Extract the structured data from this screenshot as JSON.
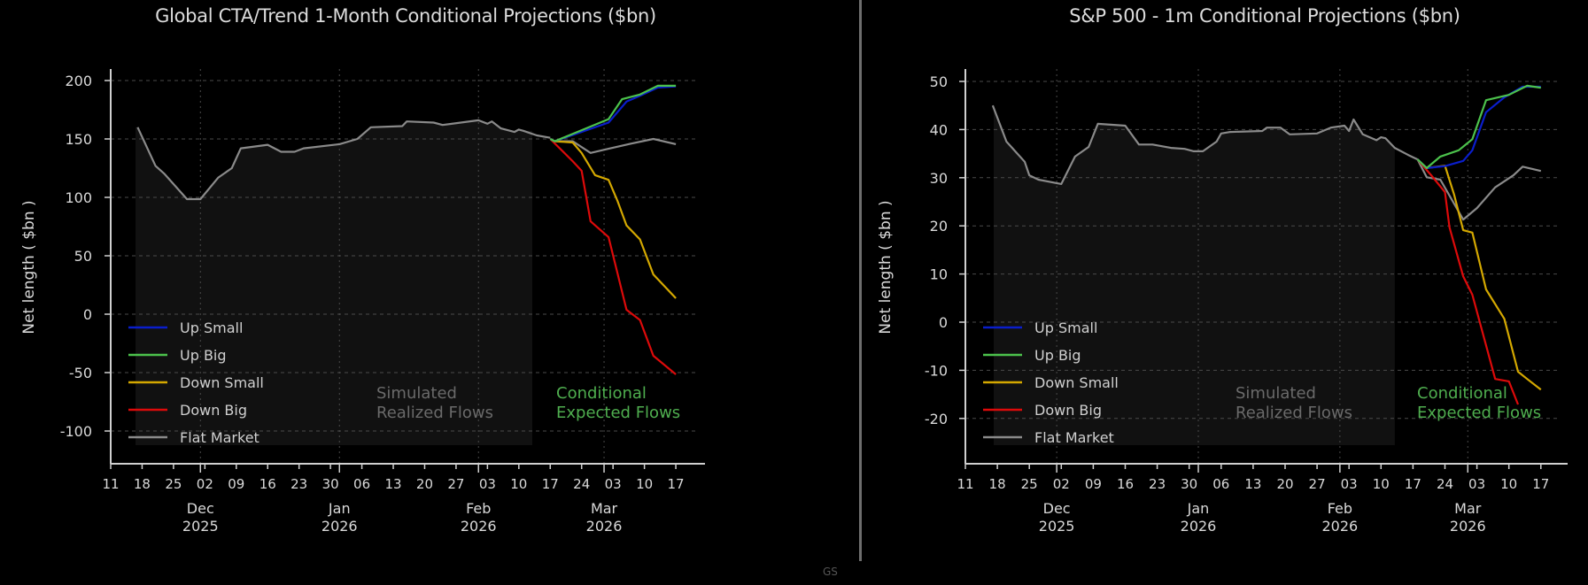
{
  "footer": "GS",
  "colors": {
    "up_small": "#0a1ecc",
    "up_big": "#4cc24c",
    "down_small": "#d4a800",
    "down_big": "#dd0a0a",
    "flat_market": "#8a8a8a",
    "realized": "#8a8a8a",
    "annotation_realized": "#6a6a6a",
    "annotation_conditional": "#4fae4f",
    "shade": "#111111",
    "axis": "#d0d0d0",
    "grid": "#4a4a4a"
  },
  "legend": [
    "Up Small",
    "Up Big",
    "Down Small",
    "Down Big",
    "Flat Market"
  ],
  "chart_data": [
    {
      "type": "line",
      "title": "Global CTA/Trend 1-Month Conditional Projections ($bn)",
      "ylabel": "Net length ( $bn )",
      "xlabel": "",
      "ylim": [
        -125,
        210
      ],
      "yticks": [
        200,
        150,
        100,
        50,
        0,
        -50,
        -100
      ],
      "xlim": [
        "2025-11-11",
        "2026-03-23"
      ],
      "xtick_labels": [
        "11",
        "18",
        "25",
        "02",
        "09",
        "16",
        "23",
        "30",
        "06",
        "13",
        "20",
        "27",
        "03",
        "10",
        "17",
        "24",
        "03",
        "10",
        "17"
      ],
      "xtick_dates": [
        "2025-11-11",
        "2025-11-18",
        "2025-11-25",
        "2025-12-02",
        "2025-12-09",
        "2025-12-16",
        "2025-12-23",
        "2025-12-30",
        "2026-01-06",
        "2026-01-13",
        "2026-01-20",
        "2026-01-27",
        "2026-02-03",
        "2026-02-10",
        "2026-02-17",
        "2026-02-24",
        "2026-03-03",
        "2026-03-10",
        "2026-03-17"
      ],
      "month_labels": [
        {
          "month": "Dec",
          "year": "2025",
          "date": "2025-12-01"
        },
        {
          "month": "Jan",
          "year": "2026",
          "date": "2026-01-01"
        },
        {
          "month": "Feb",
          "year": "2026",
          "date": "2026-02-01"
        },
        {
          "month": "Mar",
          "year": "2026",
          "date": "2026-03-01"
        }
      ],
      "grid": true,
      "legend_position": "lower-left",
      "annotations": {
        "realized": [
          "Simulated",
          "Realized Flows"
        ],
        "conditional": [
          "Conditional",
          "Expected Flows"
        ]
      },
      "shaded_until": "2026-02-13",
      "realized": {
        "x": [
          "2025-11-17",
          "2025-11-21",
          "2025-11-23",
          "2025-11-28",
          "2025-12-01",
          "2025-12-05",
          "2025-12-08",
          "2025-12-10",
          "2025-12-16",
          "2025-12-19",
          "2025-12-22",
          "2025-12-24",
          "2026-01-01",
          "2026-01-05",
          "2026-01-08",
          "2026-01-15",
          "2026-01-16",
          "2026-01-22",
          "2026-01-24",
          "2026-02-01",
          "2026-02-03",
          "2026-02-04",
          "2026-02-06",
          "2026-02-09",
          "2026-02-10",
          "2026-02-11",
          "2026-02-14",
          "2026-02-17"
        ],
        "y": [
          160,
          127,
          120,
          98.5,
          98.5,
          117,
          125,
          142,
          145,
          139,
          139,
          142,
          145.5,
          150,
          160,
          161,
          165,
          164,
          162,
          166,
          163,
          165,
          159,
          156,
          158,
          157,
          153,
          151
        ]
      },
      "series": [
        {
          "name": "Up Small",
          "key": "up_small",
          "x": [
            "2026-02-17",
            "2026-02-18",
            "2026-03-02",
            "2026-03-06",
            "2026-03-09",
            "2026-03-13",
            "2026-03-17"
          ],
          "y": [
            150,
            148,
            164,
            182,
            187,
            194,
            195
          ]
        },
        {
          "name": "Up Big",
          "key": "up_big",
          "x": [
            "2026-02-17",
            "2026-02-18",
            "2026-03-02",
            "2026-03-05",
            "2026-03-09",
            "2026-03-13",
            "2026-03-17"
          ],
          "y": [
            150,
            148,
            167,
            184,
            188,
            195.5,
            195.5
          ]
        },
        {
          "name": "Down Small",
          "key": "down_small",
          "x": [
            "2026-02-17",
            "2026-02-18",
            "2026-02-22",
            "2026-02-24",
            "2026-02-27",
            "2026-03-02",
            "2026-03-04",
            "2026-03-06",
            "2026-03-09",
            "2026-03-12",
            "2026-03-17"
          ],
          "y": [
            150,
            148,
            147,
            138,
            119,
            115,
            97,
            76,
            64,
            34,
            13.6
          ]
        },
        {
          "name": "Down Big",
          "key": "down_big",
          "x": [
            "2026-02-17",
            "2026-02-22",
            "2026-02-24",
            "2026-02-26",
            "2026-03-02",
            "2026-03-06",
            "2026-03-09",
            "2026-03-12",
            "2026-03-17"
          ],
          "y": [
            150,
            131,
            122.7,
            79.5,
            66,
            3.8,
            -5,
            -35.6,
            -51.5
          ]
        },
        {
          "name": "Flat Market",
          "key": "flat_market",
          "x": [
            "2026-02-17",
            "2026-02-18",
            "2026-02-22",
            "2026-02-26",
            "2026-03-02",
            "2026-03-07",
            "2026-03-12",
            "2026-03-17"
          ],
          "y": [
            150,
            148,
            148,
            138,
            141.6,
            146,
            150,
            145.5
          ]
        }
      ]
    },
    {
      "type": "line",
      "title": "S&P 500 - 1m Conditional Projections ($bn)",
      "ylabel": "Net length ( $bn )",
      "xlabel": "",
      "ylim": [
        -26,
        52
      ],
      "yticks": [
        50,
        40,
        30,
        20,
        10,
        0,
        -10,
        -20
      ],
      "xlim": [
        "2025-11-11",
        "2026-03-23"
      ],
      "xtick_labels": [
        "11",
        "18",
        "25",
        "02",
        "09",
        "16",
        "23",
        "30",
        "06",
        "13",
        "20",
        "27",
        "03",
        "10",
        "17",
        "24",
        "03",
        "10",
        "17"
      ],
      "xtick_dates": [
        "2025-11-11",
        "2025-11-18",
        "2025-11-25",
        "2025-12-02",
        "2025-12-09",
        "2025-12-16",
        "2025-12-23",
        "2025-12-30",
        "2026-01-06",
        "2026-01-13",
        "2026-01-20",
        "2026-01-27",
        "2026-02-03",
        "2026-02-10",
        "2026-02-17",
        "2026-02-24",
        "2026-03-03",
        "2026-03-10",
        "2026-03-17"
      ],
      "month_labels": [
        {
          "month": "Dec",
          "year": "2025",
          "date": "2025-12-01"
        },
        {
          "month": "Jan",
          "year": "2026",
          "date": "2026-01-01"
        },
        {
          "month": "Feb",
          "year": "2026",
          "date": "2026-02-01"
        },
        {
          "month": "Mar",
          "year": "2026",
          "date": "2026-03-01"
        }
      ],
      "grid": true,
      "legend_position": "lower-left",
      "annotations": {
        "realized": [
          "Simulated",
          "Realized Flows"
        ],
        "conditional": [
          "Conditional",
          "Expected Flows"
        ]
      },
      "shaded_until": "2026-02-13",
      "realized": {
        "x": [
          "2025-11-17",
          "2025-11-20",
          "2025-11-24",
          "2025-11-25",
          "2025-11-27",
          "2025-12-02",
          "2025-12-05",
          "2025-12-08",
          "2025-12-10",
          "2025-12-16",
          "2025-12-19",
          "2025-12-22",
          "2025-12-26",
          "2025-12-29",
          "2025-12-31",
          "2026-01-02",
          "2026-01-05",
          "2026-01-06",
          "2026-01-08",
          "2026-01-15",
          "2026-01-16",
          "2026-01-19",
          "2026-01-21",
          "2026-01-27",
          "2026-01-30",
          "2026-02-02",
          "2026-02-03",
          "2026-02-04",
          "2026-02-06",
          "2026-02-09",
          "2026-02-10",
          "2026-02-11",
          "2026-02-13",
          "2026-02-16",
          "2026-02-18"
        ],
        "y": [
          45,
          37.5,
          33.3,
          30.5,
          29.6,
          28.7,
          34.4,
          36.4,
          41.2,
          40.8,
          36.9,
          36.9,
          36.2,
          36,
          35.5,
          35.5,
          37.5,
          39.2,
          39.5,
          39.7,
          40.4,
          40.4,
          39,
          39.2,
          40.4,
          40.8,
          39.7,
          42.1,
          39,
          37.8,
          38.4,
          38.2,
          36.2,
          34.7,
          33.8
        ]
      },
      "series": [
        {
          "name": "Up Small",
          "key": "up_small",
          "x": [
            "2026-02-18",
            "2026-02-20",
            "2026-02-24",
            "2026-02-28",
            "2026-03-02",
            "2026-03-05",
            "2026-03-09",
            "2026-03-13",
            "2026-03-17"
          ],
          "y": [
            33.8,
            32,
            32.4,
            33.5,
            35.7,
            43.6,
            46.7,
            48.9,
            48.9
          ]
        },
        {
          "name": "Up Big",
          "key": "up_big",
          "x": [
            "2026-02-18",
            "2026-02-20",
            "2026-02-23",
            "2026-02-27",
            "2026-03-02",
            "2026-03-05",
            "2026-03-10",
            "2026-03-14",
            "2026-03-17"
          ],
          "y": [
            33.8,
            32,
            34.4,
            35.7,
            38,
            46.1,
            47.2,
            49.1,
            48.7
          ]
        },
        {
          "name": "Down Small",
          "key": "down_small",
          "x": [
            "2026-02-18",
            "2026-02-20",
            "2026-02-24",
            "2026-02-26",
            "2026-02-28",
            "2026-03-02",
            "2026-03-05",
            "2026-03-09",
            "2026-03-12",
            "2026-03-14",
            "2026-03-17"
          ],
          "y": [
            33.8,
            32,
            32.5,
            26.5,
            19.1,
            18.6,
            6.8,
            0.7,
            -10.3,
            -11.8,
            -14
          ]
        },
        {
          "name": "Down Big",
          "key": "down_big",
          "x": [
            "2026-02-18",
            "2026-02-21",
            "2026-02-24",
            "2026-02-25",
            "2026-02-28",
            "2026-03-02",
            "2026-03-07",
            "2026-03-10",
            "2026-03-12"
          ],
          "y": [
            33.8,
            30.5,
            27,
            19.7,
            9.5,
            5.7,
            -11.8,
            -12.3,
            -17.1
          ]
        },
        {
          "name": "Flat Market",
          "key": "flat_market",
          "x": [
            "2026-02-18",
            "2026-02-20",
            "2026-02-23",
            "2026-02-28",
            "2026-03-03",
            "2026-03-07",
            "2026-03-11",
            "2026-03-13",
            "2026-03-17"
          ],
          "y": [
            33.8,
            30.1,
            29.6,
            21.3,
            23.7,
            28,
            30.5,
            32.3,
            31.4
          ]
        }
      ]
    }
  ]
}
